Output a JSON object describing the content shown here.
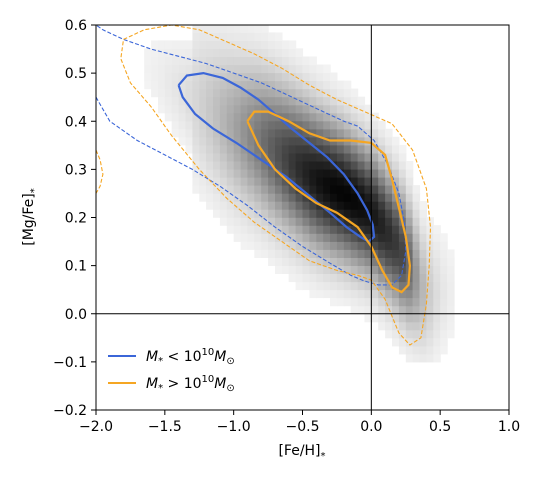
{
  "chart_data": {
    "type": "heatmap",
    "xlabel_main": "[Fe/H]",
    "xlabel_sub": "*",
    "ylabel_main": "[Mg/Fe]",
    "ylabel_sub": "*",
    "xlim": [
      -2.0,
      1.0
    ],
    "ylim": [
      -0.2,
      0.6
    ],
    "x_ticks": [
      -2.0,
      -1.5,
      -1.0,
      -0.5,
      0.0,
      0.5,
      1.0
    ],
    "x_tick_labels": [
      "−2.0",
      "−1.5",
      "−1.0",
      "−0.5",
      "0.0",
      "0.5",
      "1.0"
    ],
    "y_ticks": [
      -0.2,
      -0.1,
      0.0,
      0.1,
      0.2,
      0.3,
      0.4,
      0.5,
      0.6
    ],
    "y_tick_labels": [
      "−0.2",
      "−0.1",
      "0.0",
      "0.1",
      "0.2",
      "0.3",
      "0.4",
      "0.5",
      "0.6"
    ],
    "reference_lines": {
      "x": 0.0,
      "y": 0.0
    },
    "density_ridge": {
      "x": [
        -2.0,
        -1.8,
        -1.6,
        -1.4,
        -1.2,
        -1.0,
        -0.8,
        -0.6,
        -0.4,
        -0.2,
        0.0,
        0.2,
        0.4
      ],
      "y": [
        0.57,
        0.54,
        0.51,
        0.47,
        0.43,
        0.39,
        0.36,
        0.32,
        0.28,
        0.25,
        0.21,
        0.14,
        0.04
      ]
    },
    "series": [
      {
        "legend_main": "M",
        "legend_sub": "*",
        "legend_rel": " < 10",
        "legend_sup": "10",
        "legend_end_main": "M",
        "legend_end_sub": "⊙",
        "color": "#3b66d8",
        "contours": [
          {
            "style": "solid",
            "x": [
              -1.4,
              -1.34,
              -1.22,
              -1.08,
              -0.95,
              -0.82,
              -0.7,
              -0.58,
              -0.45,
              -0.32,
              -0.2,
              -0.1,
              -0.03,
              0.01,
              0.02,
              -0.02,
              -0.08,
              -0.18,
              -0.3,
              -0.45,
              -0.62,
              -0.8,
              -0.98,
              -1.15,
              -1.28,
              -1.37,
              -1.4
            ],
            "y": [
              0.475,
              0.495,
              0.5,
              0.49,
              0.47,
              0.445,
              0.415,
              0.385,
              0.355,
              0.325,
              0.29,
              0.25,
              0.215,
              0.185,
              0.16,
              0.15,
              0.16,
              0.18,
              0.21,
              0.245,
              0.285,
              0.32,
              0.355,
              0.385,
              0.415,
              0.45,
              0.475
            ]
          },
          {
            "style": "dashed",
            "x": [
              -2.0,
              -1.9,
              -1.7,
              -1.5,
              -1.3,
              -1.1,
              -0.9,
              -0.7,
              -0.5,
              -0.3,
              -0.15,
              -0.05,
              0.05,
              0.15,
              0.22,
              0.25,
              0.24,
              0.2,
              0.12,
              0.02,
              -0.1,
              -0.2,
              -0.35,
              -0.5,
              -0.65,
              -0.8,
              -1.0,
              -1.2,
              -1.4,
              -1.6,
              -1.8,
              -1.95,
              -2.0
            ],
            "y": [
              0.45,
              0.4,
              0.36,
              0.33,
              0.3,
              0.265,
              0.225,
              0.18,
              0.14,
              0.105,
              0.08,
              0.068,
              0.06,
              0.06,
              0.08,
              0.13,
              0.19,
              0.25,
              0.31,
              0.36,
              0.39,
              0.4,
              0.42,
              0.44,
              0.46,
              0.48,
              0.5,
              0.52,
              0.535,
              0.55,
              0.57,
              0.59,
              0.6
            ]
          }
        ]
      },
      {
        "legend_main": "M",
        "legend_sub": "*",
        "legend_rel": " > 10",
        "legend_sup": "10",
        "legend_end_main": "M",
        "legend_end_sub": "⊙",
        "color": "#f5a623",
        "contours": [
          {
            "style": "solid",
            "x": [
              -0.9,
              -0.85,
              -0.75,
              -0.6,
              -0.45,
              -0.3,
              -0.15,
              0.0,
              0.1,
              0.15,
              0.2,
              0.25,
              0.28,
              0.27,
              0.22,
              0.15,
              0.08,
              0.0,
              -0.1,
              -0.25,
              -0.4,
              -0.55,
              -0.7,
              -0.82,
              -0.9
            ],
            "y": [
              0.4,
              0.42,
              0.42,
              0.4,
              0.375,
              0.36,
              0.36,
              0.355,
              0.33,
              0.28,
              0.22,
              0.16,
              0.1,
              0.06,
              0.045,
              0.055,
              0.09,
              0.14,
              0.18,
              0.21,
              0.23,
              0.26,
              0.3,
              0.35,
              0.4
            ]
          },
          {
            "style": "dashed",
            "x": [
              -1.8,
              -1.65,
              -1.45,
              -1.25,
              -1.05,
              -0.85,
              -0.65,
              -0.45,
              -0.25,
              -0.05,
              0.15,
              0.3,
              0.4,
              0.43,
              0.42,
              0.4,
              0.36,
              0.28,
              0.2,
              0.1,
              0.0,
              -0.1,
              -0.25,
              -0.45,
              -0.65,
              -0.85,
              -1.05,
              -1.25,
              -1.45,
              -1.6,
              -1.75,
              -1.82,
              -1.8
            ],
            "y": [
              0.57,
              0.59,
              0.6,
              0.59,
              0.565,
              0.54,
              0.51,
              0.475,
              0.445,
              0.42,
              0.395,
              0.34,
              0.26,
              0.18,
              0.1,
              0.02,
              -0.05,
              -0.065,
              -0.04,
              0.03,
              0.07,
              0.08,
              0.09,
              0.11,
              0.15,
              0.19,
              0.24,
              0.3,
              0.37,
              0.43,
              0.48,
              0.53,
              0.57
            ]
          },
          {
            "style": "dashed",
            "x": [
              -2.0,
              -1.97,
              -1.95,
              -1.97,
              -2.0
            ],
            "y": [
              0.34,
              0.32,
              0.29,
              0.265,
              0.25
            ]
          }
        ]
      }
    ],
    "legend_position": "lower-left",
    "grid": false
  }
}
